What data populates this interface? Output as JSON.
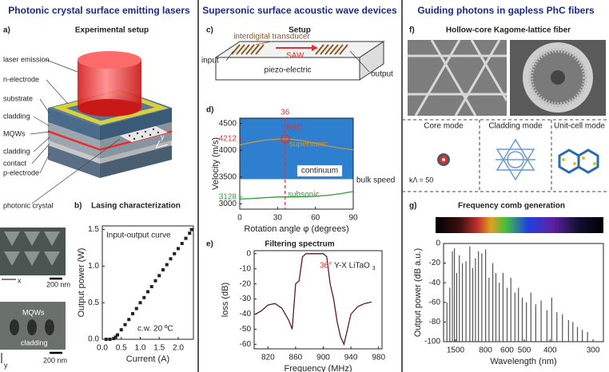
{
  "columns": [
    {
      "title": "Photonic crystal surface emitting lasers"
    },
    {
      "title": "Supersonic surface acoustic wave devices"
    },
    {
      "title": "Guiding photons in gapless PhC fibers"
    }
  ],
  "setup_a": {
    "label": "a)",
    "title": "Experimental setup",
    "layers": [
      "laser emission",
      "n-electrode",
      "substrate",
      "cladding",
      "MQWs",
      "cladding",
      "contact",
      "p-electrode"
    ],
    "photonic_crystal": "photonic crystal",
    "axes": [
      "x",
      "y"
    ]
  },
  "sem": [
    {
      "axis": "x",
      "scale": "200 nm"
    },
    {
      "axis": "y",
      "scale": "200 nm",
      "layers": [
        "MQWs",
        "cladding"
      ]
    }
  ],
  "setup_c": {
    "label": "c)",
    "title": "Setup",
    "transducer": "interdigital transducer",
    "input": "input",
    "wave": "SAW",
    "output": "output",
    "substrate": "piezo-electric"
  },
  "fiber_f": {
    "label": "f)",
    "title": "Hollow-core Kagome-lattice fiber",
    "modes": [
      "Core mode",
      "Cladding mode",
      "Unit-cell mode"
    ],
    "parameter": "kΛ = 50"
  },
  "chart_data": [
    {
      "type": "scatter",
      "panel": "b)",
      "title": "Lasing characterization",
      "x_label": "Current (A)",
      "y_label": "Output power (W)",
      "annotations": [
        "Input-output curve",
        "c.w. 20 ºC"
      ],
      "annotation_colors": [
        "#222222",
        "#222222"
      ],
      "x": [
        0.1,
        0.2,
        0.3,
        0.35,
        0.4,
        0.5,
        0.6,
        0.7,
        0.8,
        0.9,
        1.0,
        1.1,
        1.2,
        1.3,
        1.4,
        1.5,
        1.6,
        1.7,
        1.8,
        1.9,
        2.0,
        2.1,
        2.2,
        2.3,
        2.35
      ],
      "values": [
        0,
        0,
        0.01,
        0.03,
        0.06,
        0.13,
        0.2,
        0.27,
        0.35,
        0.42,
        0.5,
        0.57,
        0.65,
        0.72,
        0.8,
        0.87,
        0.95,
        1.02,
        1.1,
        1.17,
        1.24,
        1.31,
        1.38,
        1.45,
        1.5
      ],
      "color": "#222222",
      "xlim": [
        0,
        2.4
      ],
      "ylim": [
        0,
        1.55
      ],
      "xticks": [
        {
          "value": 0,
          "label": "0.0"
        },
        0.5,
        {
          "value": 1,
          "label": "1.0"
        },
        1.5,
        {
          "value": 2,
          "label": "2.0"
        }
      ],
      "yticks": [
        {
          "value": 0,
          "label": "0.0"
        },
        0.5,
        {
          "value": 1,
          "label": "1.0"
        },
        1.5
      ]
    },
    {
      "type": "line",
      "panel": "d)",
      "x_label": "Rotation angle φ (degrees)",
      "y_label": "Velocity (m/s)",
      "annotations": [
        "SSC",
        "bulk speed"
      ],
      "annotation_colors": [
        "#e03030",
        "#222222"
      ],
      "x": [
        0,
        10,
        20,
        30,
        36,
        40,
        50,
        60,
        70,
        80,
        90
      ],
      "series": [
        {
          "name": "supersonic",
          "color": "#c8963c",
          "values": [
            4100,
            4150,
            4190,
            4208,
            4212,
            4208,
            4180,
            4130,
            4080,
            4040,
            4010
          ]
        },
        {
          "name": "subsonic",
          "color": "#2e9a3a",
          "values": [
            3090,
            3100,
            3115,
            3126,
            3128,
            3128,
            3130,
            3140,
            3160,
            3190,
            3230
          ]
        }
      ],
      "region": {
        "name": "continuum",
        "color": "#2f7fd0",
        "from": 3460,
        "to": 4600
      },
      "marked_x": {
        "value": 36,
        "color": "#e03030"
      },
      "marked_y": [
        {
          "value": 4212,
          "color": "#e03030"
        },
        {
          "value": 3128,
          "color": "#2e9a3a"
        }
      ],
      "xlim": [
        0,
        90
      ],
      "ylim": [
        2900,
        4600
      ],
      "xticks": [
        0,
        30,
        60,
        90
      ],
      "yticks": [
        3000,
        3500,
        4000,
        4500
      ]
    },
    {
      "type": "line",
      "panel": "e)",
      "title": "Filtering spectrum",
      "x_label": "Frequency (MHz)",
      "y_label": "loss (dB)",
      "annotations": [
        "36°",
        "Y-X LiTaO",
        "3"
      ],
      "annotation_colors": [
        "#e03030",
        "#222222",
        "#222222"
      ],
      "x": [
        802,
        810,
        820,
        830,
        840,
        850,
        855,
        860,
        865,
        870,
        875,
        880,
        890,
        900,
        905,
        910,
        915,
        920,
        925,
        930,
        935,
        940,
        950,
        960,
        970
      ],
      "values": [
        -40,
        -38,
        -34,
        -33,
        -36,
        -44,
        -50,
        -20,
        -18,
        -2,
        0,
        0,
        0,
        0,
        -2,
        -20,
        -30,
        -45,
        -55,
        -60,
        -50,
        -40,
        -35,
        -33,
        -32
      ],
      "color": "#5a1e1e",
      "xlim": [
        800,
        985
      ],
      "ylim": [
        -63,
        2
      ],
      "xticks": [
        820,
        860,
        900,
        940,
        980
      ],
      "yticks": [
        0,
        -10,
        -20,
        -30,
        -40,
        -50,
        -60
      ]
    },
    {
      "type": "stem",
      "panel": "g)",
      "title": "Frequency comb generation",
      "x_label": "Wavelength (nm)",
      "y_label": "Output power (dB a.u.)",
      "x_scale": "reciprocal",
      "x": [
        2000,
        1800,
        1650,
        1550,
        1450,
        1350,
        1250,
        1150,
        1060,
        1000,
        950,
        900,
        850,
        800,
        760,
        720,
        690,
        660,
        630,
        600,
        575,
        550,
        530,
        510,
        490,
        470,
        450,
        430,
        410,
        395,
        380,
        365,
        350,
        340,
        330,
        320,
        310
      ],
      "values": [
        -60,
        -45,
        -8,
        -5,
        -30,
        -12,
        -20,
        -18,
        -3,
        -25,
        -15,
        -8,
        -10,
        -6,
        -35,
        -20,
        -30,
        -40,
        -30,
        -45,
        -35,
        -50,
        -45,
        -55,
        -60,
        -50,
        -62,
        -58,
        -68,
        -55,
        -70,
        -72,
        -78,
        -80,
        -85,
        -88,
        -90
      ],
      "color": "#555555",
      "xlim": [
        2300,
        283
      ],
      "ylim": [
        -100,
        0
      ],
      "xticks": [
        1500,
        800,
        600,
        500,
        400,
        300
      ],
      "yticks": [
        0,
        -20,
        -40,
        -60,
        -80,
        -100
      ]
    }
  ]
}
